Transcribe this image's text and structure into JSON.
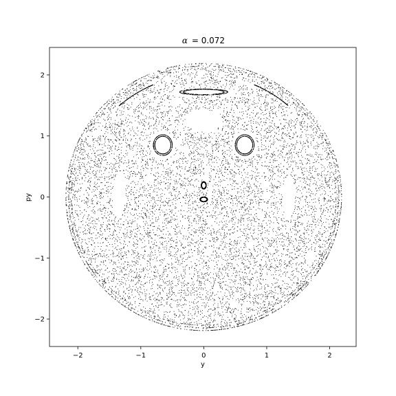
{
  "chart_data": {
    "type": "scatter",
    "title_symbol": "α",
    "title_value": "= 0.072",
    "xlabel": "y",
    "ylabel": "py",
    "xlim": [
      -2.45,
      2.42
    ],
    "ylim": [
      -2.45,
      2.45
    ],
    "xticks": [
      -2,
      -1,
      0,
      1,
      2
    ],
    "xtick_labels": [
      "−2",
      "−1",
      "0",
      "1",
      "2"
    ],
    "yticks": [
      -2,
      -1,
      0,
      1,
      2
    ],
    "ytick_labels": [
      "−2",
      "−1",
      "0",
      "1",
      "2"
    ],
    "grid": false,
    "marker_color": "#000000",
    "boundary_radius": 2.2,
    "seed": 7,
    "chaotic_points_count": 9000,
    "islands": [
      {
        "name": "upper-left-island",
        "cx": -0.65,
        "cy": 0.85,
        "rx": 0.15,
        "ry": 0.17
      },
      {
        "name": "upper-right-island",
        "cx": 0.65,
        "cy": 0.85,
        "rx": 0.15,
        "ry": 0.17
      },
      {
        "name": "top-center-island",
        "cx": 0.0,
        "cy": 1.72,
        "rx": 0.38,
        "ry": 0.05
      },
      {
        "name": "center-upper-blob",
        "cx": 0.0,
        "cy": 0.19,
        "rx": 0.04,
        "ry": 0.06
      },
      {
        "name": "center-lower-blob",
        "cx": 0.0,
        "cy": -0.04,
        "rx": 0.06,
        "ry": 0.04
      }
    ],
    "gaps": [
      {
        "name": "left-gap",
        "cx": -1.35,
        "cy": 0.0,
        "rx": 0.1,
        "ry": 0.35
      },
      {
        "name": "right-gap",
        "cx": 1.35,
        "cy": 0.0,
        "rx": 0.1,
        "ry": 0.35
      },
      {
        "name": "upper-center-gap",
        "cx": 0.0,
        "cy": 1.25,
        "rx": 0.3,
        "ry": 0.18
      }
    ]
  }
}
